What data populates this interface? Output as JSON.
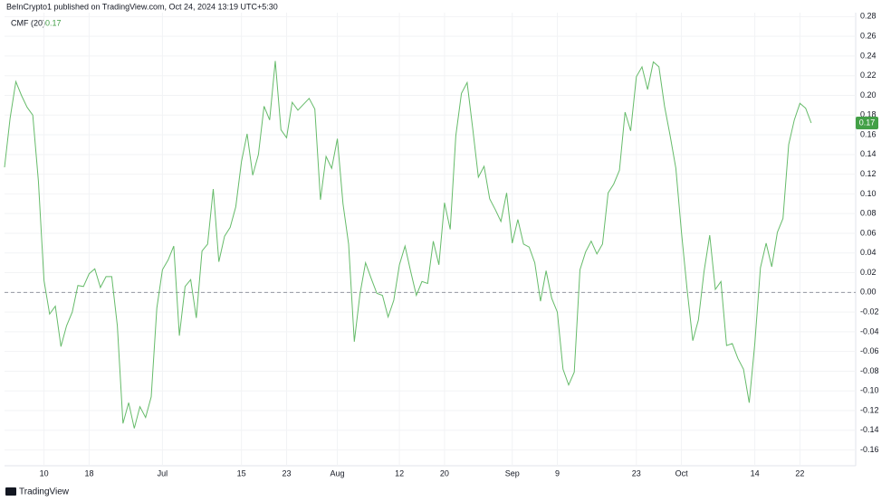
{
  "header": "BeInCrypto1 published on TradingView.com, Oct 24, 2024 13:19 UTC+5:30",
  "footer": "TradingView",
  "chart_data": {
    "type": "line",
    "categories": [
      null,
      null,
      null,
      null,
      null,
      null,
      null,
      "10",
      null,
      null,
      null,
      null,
      null,
      null,
      null,
      "18",
      null,
      null,
      null,
      null,
      null,
      null,
      null,
      null,
      null,
      null,
      null,
      null,
      "Jul",
      null,
      null,
      null,
      null,
      null,
      null,
      null,
      null,
      null,
      null,
      null,
      null,
      null,
      "15",
      null,
      null,
      null,
      null,
      null,
      null,
      null,
      "23",
      null,
      null,
      null,
      null,
      null,
      null,
      null,
      null,
      "Aug",
      null,
      null,
      null,
      null,
      null,
      null,
      null,
      null,
      null,
      null,
      "12",
      null,
      null,
      null,
      null,
      null,
      null,
      null,
      "20",
      null,
      null,
      null,
      null,
      null,
      null,
      null,
      null,
      null,
      null,
      null,
      "Sep",
      null,
      null,
      null,
      null,
      null,
      null,
      null,
      "9",
      null,
      null,
      null,
      null,
      null,
      null,
      null,
      null,
      null,
      null,
      null,
      null,
      null,
      "23",
      null,
      null,
      null,
      null,
      null,
      null,
      null,
      "Oct",
      null,
      null,
      null,
      null,
      null,
      null,
      null,
      null,
      null,
      null,
      null,
      null,
      "14",
      null,
      null,
      null,
      null,
      null,
      null,
      null,
      "22",
      null,
      null
    ],
    "series": [
      {
        "name": "CMF (20)",
        "color": "#66bb6a",
        "last_label": "0.17",
        "values": [
          0.127,
          0.177,
          0.214,
          0.2,
          0.188,
          0.18,
          0.113,
          0.012,
          -0.022,
          -0.014,
          -0.055,
          -0.034,
          -0.02,
          0.007,
          0.006,
          0.019,
          0.024,
          0.005,
          0.016,
          0.016,
          -0.034,
          -0.133,
          -0.112,
          -0.138,
          -0.116,
          -0.127,
          -0.106,
          -0.016,
          0.023,
          0.033,
          0.047,
          -0.044,
          0.006,
          0.013,
          -0.026,
          0.042,
          0.049,
          0.105,
          0.031,
          0.057,
          0.066,
          0.087,
          0.133,
          0.161,
          0.119,
          0.14,
          0.189,
          0.175,
          0.235,
          0.165,
          0.157,
          0.193,
          0.185,
          0.191,
          0.197,
          0.186,
          0.094,
          0.138,
          0.126,
          0.156,
          0.09,
          0.049,
          -0.05,
          -0.002,
          0.03,
          0.014,
          -0.001,
          -0.003,
          -0.025,
          -0.008,
          0.028,
          0.047,
          0.021,
          -0.003,
          0.011,
          0.009,
          0.052,
          0.028,
          0.091,
          0.064,
          0.159,
          0.202,
          0.213,
          0.166,
          0.117,
          0.128,
          0.095,
          0.084,
          0.072,
          0.101,
          0.05,
          0.074,
          0.049,
          0.046,
          0.03,
          -0.009,
          0.022,
          -0.006,
          -0.02,
          -0.078,
          -0.094,
          -0.081,
          0.023,
          0.041,
          0.052,
          0.039,
          0.049,
          0.101,
          0.11,
          0.124,
          0.183,
          0.164,
          0.219,
          0.229,
          0.206,
          0.234,
          0.229,
          0.189,
          0.159,
          0.126,
          0.061,
          0.003,
          -0.049,
          -0.028,
          0.021,
          0.058,
          0.003,
          0.011,
          -0.054,
          -0.052,
          -0.067,
          -0.078,
          -0.112,
          -0.052,
          0.025,
          0.05,
          0.026,
          0.061,
          0.075,
          0.15,
          0.175,
          0.192,
          0.187,
          0.172
        ]
      }
    ],
    "reference_line": 0,
    "ylim": [
      -0.176,
      0.284
    ],
    "yticks": [
      -0.16,
      -0.14,
      -0.12,
      {
        "value": -0.1,
        "label": "-0.10"
      },
      -0.08,
      -0.06,
      -0.04,
      -0.02,
      {
        "value": 0,
        "label": "0.00"
      },
      0.02,
      0.04,
      0.06,
      0.08,
      {
        "value": 0.1,
        "label": "0.10"
      },
      0.12,
      0.14,
      0.16,
      0.18,
      {
        "value": 0.2,
        "label": "0.20"
      },
      0.22,
      0.24,
      0.26,
      0.28
    ],
    "grid": true
  }
}
